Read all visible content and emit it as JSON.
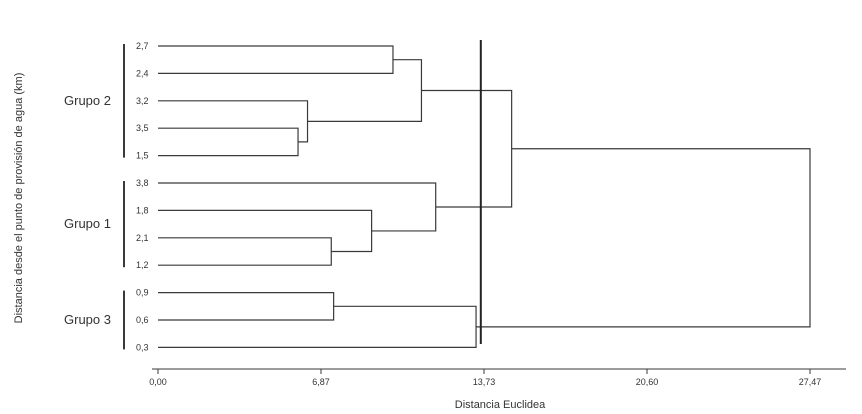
{
  "chart_data": {
    "type": "dendrogram",
    "xlabel": "Distancia Euclidea",
    "ylabel": "Distancia desde el punto de provisión de agua (km)",
    "xlim": [
      0,
      27.47
    ],
    "x_ticks": [
      "0,00",
      "6,87",
      "13,73",
      "20,60",
      "27,47"
    ],
    "leaves": [
      "2,7",
      "2,4",
      "3,2",
      "3,5",
      "1,5",
      "3,8",
      "1,8",
      "2,1",
      "1,2",
      "0,9",
      "0,6",
      "0,3"
    ],
    "merges": [
      {
        "a": "L5",
        "b": "L4",
        "height": 5.9,
        "id": "m1"
      },
      {
        "a": "L3",
        "b": "m1",
        "height": 6.3,
        "id": "m2"
      },
      {
        "a": "L1",
        "b": "L2",
        "height": 9.9,
        "id": "m3"
      },
      {
        "a": "m3",
        "b": "m2",
        "height": 11.1,
        "id": "m4"
      },
      {
        "a": "L9",
        "b": "L8",
        "height": 7.3,
        "id": "m5"
      },
      {
        "a": "L7",
        "b": "m5",
        "height": 9.0,
        "id": "m6"
      },
      {
        "a": "L6",
        "b": "m6",
        "height": 11.7,
        "id": "m7"
      },
      {
        "a": "m4",
        "b": "m7",
        "height": 14.9,
        "id": "m8"
      },
      {
        "a": "L10",
        "b": "L11",
        "height": 7.4,
        "id": "m9"
      },
      {
        "a": "m9",
        "b": "L12",
        "height": 13.4,
        "id": "m10"
      },
      {
        "a": "m8",
        "b": "m10",
        "height": 27.47,
        "id": "m11"
      }
    ],
    "cut_height": 13.6,
    "groups": [
      {
        "label": "Grupo 2",
        "leaves": [
          "2,7",
          "2,4",
          "3,2",
          "3,5",
          "1,5"
        ]
      },
      {
        "label": "Grupo 1",
        "leaves": [
          "3,8",
          "1,8",
          "2,1",
          "1,2"
        ]
      },
      {
        "label": "Grupo 3",
        "leaves": [
          "0,9",
          "0,6",
          "0,3"
        ]
      }
    ]
  }
}
